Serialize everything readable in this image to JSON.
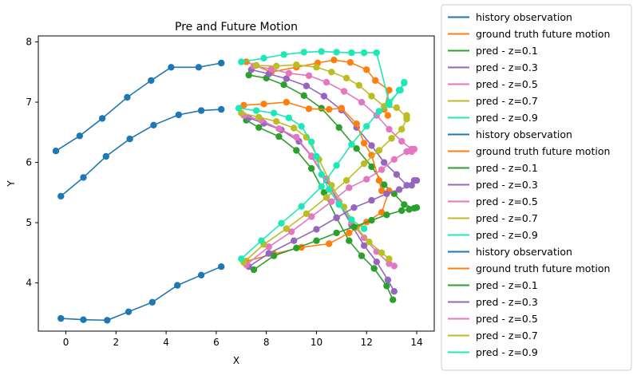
{
  "chart_data": {
    "type": "line",
    "title": "Pre and Future Motion",
    "xlabel": "X",
    "ylabel": "Y",
    "xlim": [
      -1.1,
      14.7
    ],
    "ylim": [
      3.2,
      8.1
    ],
    "xticks": [
      0,
      2,
      4,
      6,
      8,
      10,
      12,
      14
    ],
    "yticks": [
      4,
      5,
      6,
      7,
      8
    ],
    "grid": false,
    "legend_placement": "outside-right",
    "colors": {
      "history observation": "#1f77b4",
      "ground truth future motion": "#ff7f0e",
      "pred - z=0.1": "#2ca02c",
      "pred - z=0.3": "#9467bd",
      "pred - z=0.5": "#e377c2",
      "pred - z=0.7": "#bcbd22",
      "pred - z=0.9": "#1de9b6"
    },
    "legend": [
      {
        "label": "history observation",
        "color": "#1f77b4"
      },
      {
        "label": "ground truth future motion",
        "color": "#ff7f0e"
      },
      {
        "label": "pred - z=0.1",
        "color": "#2ca02c"
      },
      {
        "label": "pred - z=0.3",
        "color": "#9467bd"
      },
      {
        "label": "pred - z=0.5",
        "color": "#e377c2"
      },
      {
        "label": "pred - z=0.7",
        "color": "#bcbd22"
      },
      {
        "label": "pred - z=0.9",
        "color": "#1de9b6"
      },
      {
        "label": "history observation",
        "color": "#1f77b4"
      },
      {
        "label": "ground truth future motion",
        "color": "#ff7f0e"
      },
      {
        "label": "pred - z=0.1",
        "color": "#2ca02c"
      },
      {
        "label": "pred - z=0.3",
        "color": "#9467bd"
      },
      {
        "label": "pred - z=0.5",
        "color": "#e377c2"
      },
      {
        "label": "pred - z=0.7",
        "color": "#bcbd22"
      },
      {
        "label": "pred - z=0.9",
        "color": "#1de9b6"
      },
      {
        "label": "history observation",
        "color": "#1f77b4"
      },
      {
        "label": "ground truth future motion",
        "color": "#ff7f0e"
      },
      {
        "label": "pred - z=0.1",
        "color": "#2ca02c"
      },
      {
        "label": "pred - z=0.3",
        "color": "#9467bd"
      },
      {
        "label": "pred - z=0.5",
        "color": "#e377c2"
      },
      {
        "label": "pred - z=0.7",
        "color": "#bcbd22"
      },
      {
        "label": "pred - z=0.9",
        "color": "#1de9b6"
      }
    ],
    "series": [
      {
        "name": "history observation",
        "color": "#1f77b4",
        "points": [
          [
            -0.4,
            6.19
          ],
          [
            0.55,
            6.44
          ],
          [
            1.45,
            6.73
          ],
          [
            2.45,
            7.08
          ],
          [
            3.4,
            7.36
          ],
          [
            4.2,
            7.58
          ],
          [
            5.3,
            7.58
          ],
          [
            6.2,
            7.65
          ]
        ]
      },
      {
        "name": "ground truth future motion",
        "color": "#ff7f0e",
        "points": [
          [
            7.2,
            7.67
          ],
          [
            8.2,
            7.5
          ],
          [
            9.2,
            7.58
          ],
          [
            10.05,
            7.65
          ],
          [
            10.7,
            7.7
          ],
          [
            11.35,
            7.66
          ],
          [
            12.0,
            7.54
          ],
          [
            12.35,
            7.36
          ],
          [
            12.9,
            7.2
          ],
          [
            12.7,
            6.88
          ],
          [
            12.85,
            6.78
          ]
        ]
      },
      {
        "name": "pred - z=0.1",
        "color": "#2ca02c",
        "points": [
          [
            7.3,
            7.45
          ],
          [
            8.0,
            7.4
          ],
          [
            8.7,
            7.29
          ],
          [
            9.5,
            7.11
          ],
          [
            10.2,
            6.9
          ],
          [
            10.9,
            6.58
          ],
          [
            11.6,
            6.23
          ],
          [
            12.2,
            5.93
          ],
          [
            12.7,
            5.63
          ],
          [
            13.1,
            5.48
          ],
          [
            13.5,
            5.3
          ],
          [
            13.9,
            5.24
          ]
        ]
      },
      {
        "name": "pred - z=0.3",
        "color": "#9467bd",
        "points": [
          [
            7.4,
            7.54
          ],
          [
            8.1,
            7.47
          ],
          [
            8.8,
            7.39
          ],
          [
            9.6,
            7.27
          ],
          [
            10.3,
            7.1
          ],
          [
            11.0,
            6.87
          ],
          [
            11.6,
            6.58
          ],
          [
            12.2,
            6.28
          ],
          [
            12.7,
            6.0
          ],
          [
            13.2,
            5.8
          ],
          [
            13.6,
            5.62
          ],
          [
            13.9,
            5.7
          ]
        ]
      },
      {
        "name": "pred - z=0.5",
        "color": "#e377c2",
        "points": [
          [
            7.5,
            7.6
          ],
          [
            8.2,
            7.55
          ],
          [
            8.9,
            7.48
          ],
          [
            9.7,
            7.44
          ],
          [
            10.4,
            7.33
          ],
          [
            11.1,
            7.18
          ],
          [
            11.8,
            7.0
          ],
          [
            12.4,
            6.78
          ],
          [
            12.9,
            6.55
          ],
          [
            13.4,
            6.35
          ],
          [
            13.8,
            6.22
          ],
          [
            13.8,
            6.18
          ]
        ]
      },
      {
        "name": "pred - z=0.7",
        "color": "#bcbd22",
        "points": [
          [
            7.6,
            7.61
          ],
          [
            8.4,
            7.6
          ],
          [
            9.2,
            7.62
          ],
          [
            10.0,
            7.58
          ],
          [
            10.6,
            7.5
          ],
          [
            11.2,
            7.4
          ],
          [
            11.7,
            7.28
          ],
          [
            12.2,
            7.1
          ],
          [
            12.7,
            6.93
          ],
          [
            13.2,
            6.91
          ],
          [
            13.6,
            6.75
          ],
          [
            13.6,
            6.78
          ]
        ]
      },
      {
        "name": "pred - z=0.9",
        "color": "#1de9b6",
        "points": [
          [
            7.0,
            7.67
          ],
          [
            7.9,
            7.73
          ],
          [
            8.7,
            7.79
          ],
          [
            9.5,
            7.83
          ],
          [
            10.2,
            7.84
          ],
          [
            10.8,
            7.83
          ],
          [
            11.4,
            7.82
          ],
          [
            11.9,
            7.82
          ],
          [
            12.4,
            7.82
          ],
          [
            12.9,
            7.0
          ],
          [
            13.35,
            7.2
          ],
          [
            13.5,
            7.33
          ]
        ]
      },
      {
        "name": "history observation",
        "color": "#1f77b4",
        "points": [
          [
            -0.2,
            5.44
          ],
          [
            0.7,
            5.75
          ],
          [
            1.6,
            6.1
          ],
          [
            2.55,
            6.39
          ],
          [
            3.5,
            6.62
          ],
          [
            4.5,
            6.79
          ],
          [
            5.4,
            6.86
          ],
          [
            6.2,
            6.88
          ]
        ]
      },
      {
        "name": "ground truth future motion",
        "color": "#ff7f0e",
        "points": [
          [
            7.1,
            6.95
          ],
          [
            7.9,
            6.97
          ],
          [
            8.8,
            7.0
          ],
          [
            9.7,
            6.89
          ],
          [
            10.5,
            6.88
          ],
          [
            11.0,
            6.9
          ],
          [
            11.6,
            6.64
          ],
          [
            11.9,
            6.32
          ],
          [
            12.2,
            6.12
          ],
          [
            12.5,
            5.7
          ],
          [
            12.6,
            5.53
          ]
        ]
      },
      {
        "name": "pred - z=0.1",
        "color": "#2ca02c",
        "points": [
          [
            7.2,
            6.7
          ],
          [
            7.7,
            6.58
          ],
          [
            8.5,
            6.43
          ],
          [
            9.2,
            6.2
          ],
          [
            9.8,
            5.9
          ],
          [
            10.3,
            5.5
          ],
          [
            10.8,
            5.08
          ],
          [
            11.3,
            4.7
          ],
          [
            11.8,
            4.45
          ],
          [
            12.3,
            4.24
          ],
          [
            12.8,
            3.95
          ],
          [
            13.05,
            3.72
          ]
        ]
      },
      {
        "name": "pred - z=0.3",
        "color": "#9467bd",
        "points": [
          [
            7.3,
            6.74
          ],
          [
            7.9,
            6.65
          ],
          [
            8.6,
            6.54
          ],
          [
            9.3,
            6.35
          ],
          [
            9.8,
            6.1
          ],
          [
            10.4,
            5.7
          ],
          [
            10.9,
            5.32
          ],
          [
            11.4,
            4.96
          ],
          [
            11.9,
            4.62
          ],
          [
            12.4,
            4.35
          ],
          [
            12.85,
            4.05
          ],
          [
            13.1,
            3.86
          ]
        ]
      },
      {
        "name": "pred - z=0.5",
        "color": "#e377c2",
        "points": [
          [
            7.1,
            6.78
          ],
          [
            7.8,
            6.7
          ],
          [
            8.5,
            6.56
          ],
          [
            9.2,
            6.42
          ],
          [
            9.8,
            6.11
          ],
          [
            10.4,
            5.73
          ],
          [
            10.9,
            5.35
          ],
          [
            11.4,
            5.0
          ],
          [
            11.9,
            4.75
          ],
          [
            12.4,
            4.52
          ],
          [
            12.9,
            4.32
          ],
          [
            13.1,
            4.28
          ]
        ]
      },
      {
        "name": "pred - z=0.7",
        "color": "#bcbd22",
        "points": [
          [
            7.0,
            6.82
          ],
          [
            7.7,
            6.75
          ],
          [
            8.4,
            6.68
          ],
          [
            9.1,
            6.57
          ],
          [
            9.6,
            6.42
          ],
          [
            10.1,
            6.05
          ],
          [
            10.6,
            5.62
          ],
          [
            11.1,
            5.26
          ],
          [
            11.6,
            4.92
          ],
          [
            12.1,
            4.68
          ],
          [
            12.6,
            4.5
          ],
          [
            12.9,
            4.4
          ]
        ]
      },
      {
        "name": "pred - z=0.9",
        "color": "#1de9b6",
        "points": [
          [
            6.9,
            6.9
          ],
          [
            7.6,
            6.86
          ],
          [
            8.3,
            6.82
          ],
          [
            8.9,
            6.74
          ],
          [
            9.4,
            6.6
          ],
          [
            9.8,
            6.34
          ],
          [
            10.0,
            6.1
          ],
          [
            10.2,
            5.8
          ],
          [
            10.5,
            5.55
          ],
          [
            10.9,
            5.3
          ],
          [
            11.4,
            5.05
          ],
          [
            11.9,
            4.9
          ]
        ]
      },
      {
        "name": "history observation",
        "color": "#1f77b4",
        "points": [
          [
            -0.2,
            3.41
          ],
          [
            0.7,
            3.39
          ],
          [
            1.65,
            3.38
          ],
          [
            2.5,
            3.52
          ],
          [
            3.45,
            3.68
          ],
          [
            4.45,
            3.96
          ],
          [
            5.4,
            4.13
          ],
          [
            6.2,
            4.27
          ]
        ]
      },
      {
        "name": "ground truth future motion",
        "color": "#ff7f0e",
        "points": [
          [
            7.2,
            4.36
          ],
          [
            8.3,
            4.48
          ],
          [
            9.4,
            4.59
          ],
          [
            10.5,
            4.65
          ],
          [
            11.3,
            4.83
          ],
          [
            12.0,
            5.01
          ],
          [
            12.6,
            5.17
          ],
          [
            12.9,
            5.53
          ]
        ]
      },
      {
        "name": "pred - z=0.1",
        "color": "#2ca02c",
        "points": [
          [
            7.5,
            4.22
          ],
          [
            8.3,
            4.45
          ],
          [
            9.2,
            4.58
          ],
          [
            10.0,
            4.7
          ],
          [
            10.8,
            4.83
          ],
          [
            11.5,
            4.93
          ],
          [
            12.2,
            5.04
          ],
          [
            12.8,
            5.13
          ],
          [
            13.4,
            5.2
          ],
          [
            13.7,
            5.22
          ],
          [
            14.0,
            5.25
          ]
        ]
      },
      {
        "name": "pred - z=0.3",
        "color": "#9467bd",
        "points": [
          [
            7.3,
            4.27
          ],
          [
            8.1,
            4.49
          ],
          [
            9.1,
            4.7
          ],
          [
            10.0,
            4.89
          ],
          [
            10.8,
            5.08
          ],
          [
            11.5,
            5.25
          ],
          [
            12.2,
            5.37
          ],
          [
            12.8,
            5.48
          ],
          [
            13.3,
            5.55
          ],
          [
            13.8,
            5.62
          ],
          [
            14.0,
            5.7
          ]
        ]
      },
      {
        "name": "pred - z=0.5",
        "color": "#e377c2",
        "points": [
          [
            7.2,
            4.3
          ],
          [
            8.1,
            4.6
          ],
          [
            9.0,
            4.85
          ],
          [
            9.8,
            5.1
          ],
          [
            10.6,
            5.35
          ],
          [
            11.3,
            5.58
          ],
          [
            12.0,
            5.72
          ],
          [
            12.6,
            5.88
          ],
          [
            13.1,
            6.05
          ],
          [
            13.6,
            6.18
          ],
          [
            13.9,
            6.22
          ]
        ]
      },
      {
        "name": "pred - z=0.7",
        "color": "#bcbd22",
        "points": [
          [
            7.1,
            4.34
          ],
          [
            7.9,
            4.64
          ],
          [
            8.8,
            4.9
          ],
          [
            9.6,
            5.15
          ],
          [
            10.4,
            5.42
          ],
          [
            11.2,
            5.7
          ],
          [
            11.9,
            5.98
          ],
          [
            12.5,
            6.2
          ],
          [
            13.0,
            6.4
          ],
          [
            13.4,
            6.55
          ],
          [
            13.6,
            6.72
          ]
        ]
      },
      {
        "name": "pred - z=0.9",
        "color": "#1de9b6",
        "points": [
          [
            7.0,
            4.4
          ],
          [
            7.8,
            4.7
          ],
          [
            8.6,
            4.99
          ],
          [
            9.4,
            5.27
          ],
          [
            10.2,
            5.6
          ],
          [
            10.8,
            5.95
          ],
          [
            11.4,
            6.3
          ],
          [
            12.0,
            6.6
          ],
          [
            12.5,
            6.85
          ],
          [
            12.9,
            6.96
          ],
          [
            13.3,
            7.2
          ],
          [
            13.5,
            7.32
          ]
        ]
      }
    ]
  }
}
